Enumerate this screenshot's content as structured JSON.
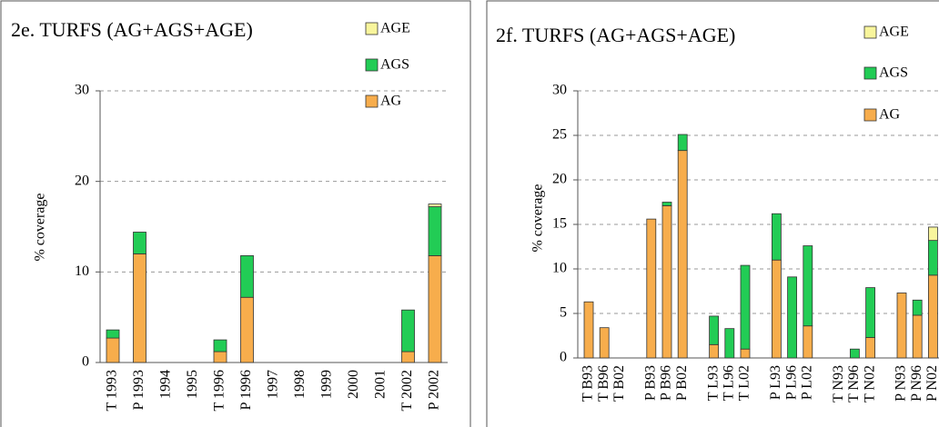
{
  "chart_data": [
    {
      "type": "bar",
      "stacked": true,
      "title": "2e. TURFS (AG+AGS+AGE)",
      "ylabel": "% coverage",
      "categories": [
        "T 1993",
        "P 1993",
        "1994",
        "1995",
        "T 1996",
        "P 1996",
        "1997",
        "1998",
        "1999",
        "2000",
        "2001",
        "T 2002",
        "P 2002"
      ],
      "series": [
        {
          "name": "AG",
          "color": "#f7ad4c",
          "values": [
            2.7,
            12,
            0,
            0,
            1.2,
            7.2,
            0,
            0,
            0,
            0,
            0,
            1.2,
            11.8
          ]
        },
        {
          "name": "AGS",
          "color": "#22cc55",
          "values": [
            0.9,
            2.4,
            0,
            0,
            1.3,
            4.6,
            0,
            0,
            0,
            0,
            0,
            4.6,
            5.4
          ]
        },
        {
          "name": "AGE",
          "color": "#f8f59c",
          "values": [
            0,
            0,
            0,
            0,
            0,
            0,
            0,
            0,
            0,
            0,
            0,
            0,
            0.3
          ]
        }
      ],
      "ylim": [
        0,
        30
      ],
      "yticks": [
        0,
        10,
        20,
        30
      ],
      "grid": true,
      "legend": "upper right"
    },
    {
      "type": "bar",
      "stacked": true,
      "title": "2f. TURFS (AG+AGS+AGE)",
      "ylabel": "% coverage",
      "categories": [
        "T B93",
        "T B96",
        "T B02",
        null,
        "P B93",
        "P B96",
        "P B02",
        null,
        "T L93",
        "T L96",
        "T L02",
        null,
        "P L93",
        "P L96",
        "P L02",
        null,
        "T N93",
        "T N96",
        "T N02",
        null,
        "P N93",
        "P N96",
        "P N02"
      ],
      "series": [
        {
          "name": "AG",
          "color": "#f7ad4c",
          "values": [
            6.3,
            3.4,
            0,
            null,
            15.6,
            17.1,
            23.3,
            null,
            1.5,
            0,
            1.0,
            null,
            11.0,
            0,
            3.6,
            null,
            0,
            0,
            2.3,
            null,
            7.3,
            4.8,
            9.3
          ]
        },
        {
          "name": "AGS",
          "color": "#22cc55",
          "values": [
            0,
            0,
            0,
            null,
            0,
            0.4,
            1.8,
            null,
            3.2,
            3.3,
            9.4,
            null,
            5.2,
            9.1,
            9.0,
            null,
            0,
            1.0,
            5.6,
            null,
            0,
            1.7,
            3.9
          ]
        },
        {
          "name": "AGE",
          "color": "#f8f59c",
          "values": [
            0,
            0,
            0,
            null,
            0,
            0,
            0,
            null,
            0,
            0,
            0,
            null,
            0,
            0,
            0,
            null,
            0,
            0,
            0,
            null,
            0,
            0,
            1.5
          ]
        }
      ],
      "ylim": [
        0,
        30
      ],
      "yticks": [
        0,
        5,
        10,
        15,
        20,
        25,
        30
      ],
      "grid": true,
      "legend": "upper right"
    }
  ]
}
